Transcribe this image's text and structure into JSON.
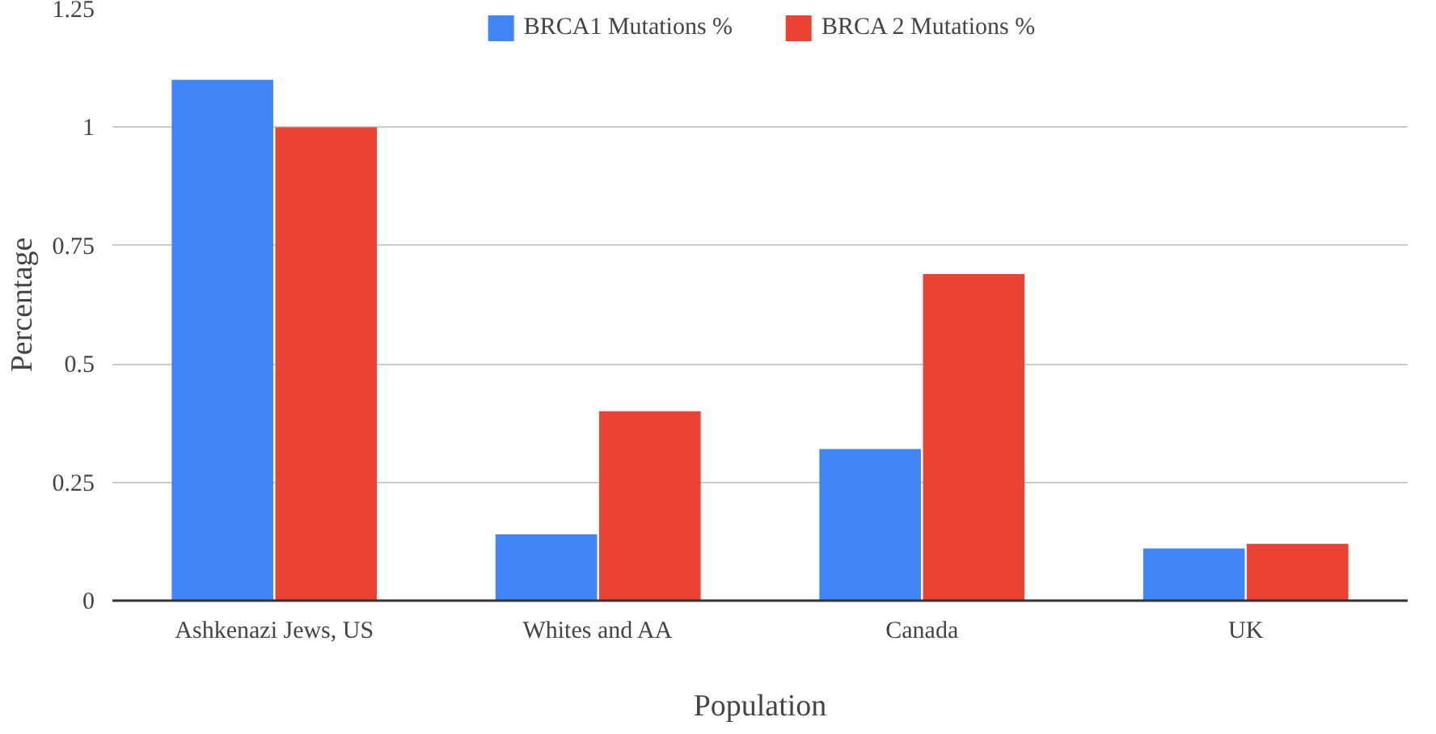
{
  "chart_data": {
    "type": "bar",
    "xlabel": "Population",
    "ylabel": "Percentage",
    "categories": [
      "Ashkenazi Jews, US",
      "Whites and AA",
      "Canada",
      "UK"
    ],
    "series": [
      {
        "name": "BRCA1 Mutations %",
        "color": "#4285f4",
        "values": [
          1.1,
          0.14,
          0.32,
          0.11
        ]
      },
      {
        "name": "BRCA 2 Mutations %",
        "color": "#ea4335",
        "values": [
          1.0,
          0.4,
          0.69,
          0.12
        ]
      }
    ],
    "ylim": [
      0,
      1.25
    ],
    "yticks": [
      0,
      0.25,
      0.5,
      0.75,
      1,
      1.25
    ],
    "grid": "y",
    "legend": "top"
  }
}
